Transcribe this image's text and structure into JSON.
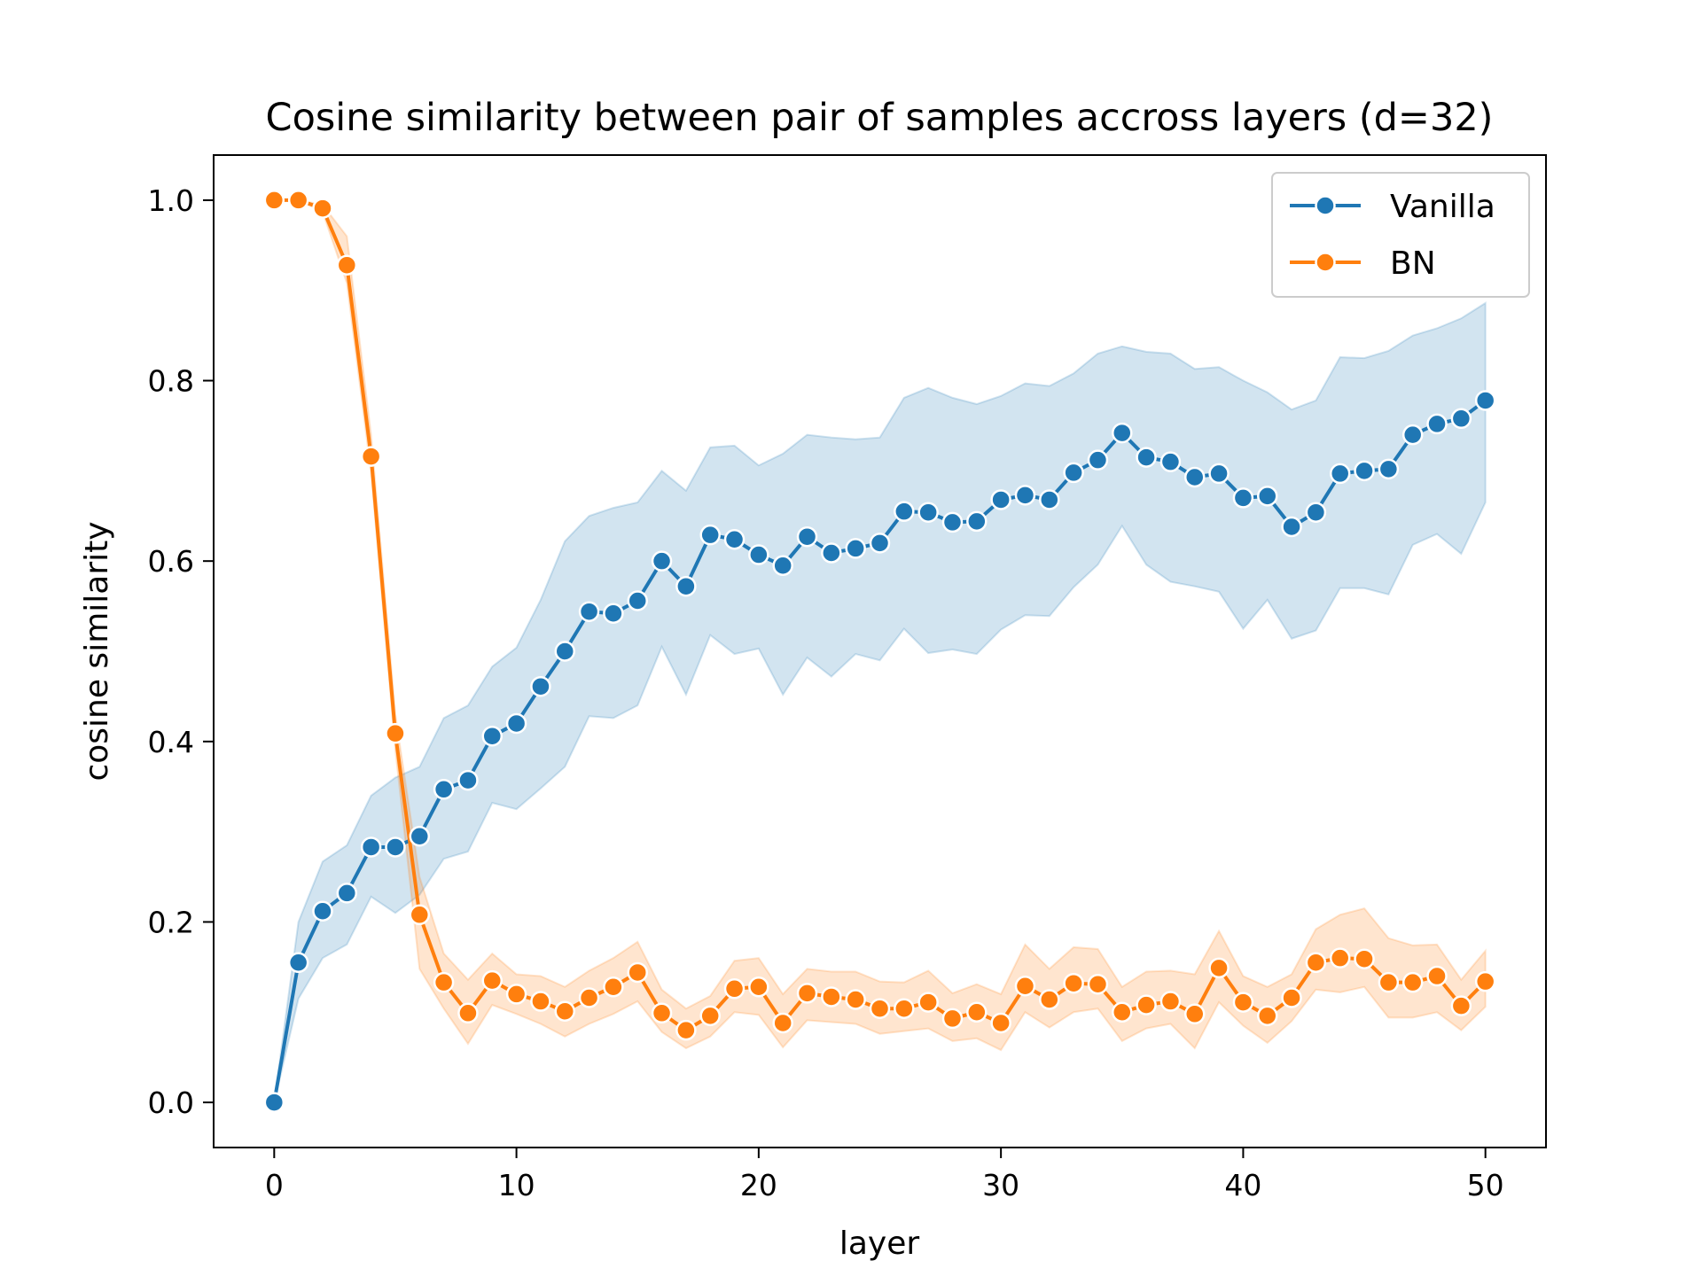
{
  "chart_data": {
    "type": "line",
    "title": "Cosine similarity between pair of samples accross layers (d=32)",
    "xlabel": "layer",
    "ylabel": "cosine similarity",
    "xlim": [
      -2.5,
      52.5
    ],
    "ylim": [
      -0.05,
      1.05
    ],
    "xticks": [
      0,
      10,
      20,
      30,
      40,
      50
    ],
    "yticks": [
      0.0,
      0.2,
      0.4,
      0.6,
      0.8,
      1.0
    ],
    "xtick_labels": [
      "0",
      "10",
      "20",
      "30",
      "40",
      "50"
    ],
    "ytick_labels": [
      "0.0",
      "0.2",
      "0.4",
      "0.6",
      "0.8",
      "1.0"
    ],
    "grid": false,
    "legend_position": "top-right",
    "x": [
      0,
      1,
      2,
      3,
      4,
      5,
      6,
      7,
      8,
      9,
      10,
      11,
      12,
      13,
      14,
      15,
      16,
      17,
      18,
      19,
      20,
      21,
      22,
      23,
      24,
      25,
      26,
      27,
      28,
      29,
      30,
      31,
      32,
      33,
      34,
      35,
      36,
      37,
      38,
      39,
      40,
      41,
      42,
      43,
      44,
      45,
      46,
      47,
      48,
      49,
      50
    ],
    "series": [
      {
        "name": "Vanilla",
        "color": "#1f77b4",
        "values": [
          0.0,
          0.155,
          0.212,
          0.232,
          0.283,
          0.283,
          0.295,
          0.347,
          0.357,
          0.406,
          0.42,
          0.461,
          0.5,
          0.544,
          0.542,
          0.556,
          0.6,
          0.572,
          0.629,
          0.624,
          0.607,
          0.595,
          0.627,
          0.609,
          0.614,
          0.62,
          0.655,
          0.654,
          0.643,
          0.644,
          0.668,
          0.673,
          0.668,
          0.698,
          0.712,
          0.742,
          0.715,
          0.71,
          0.693,
          0.697,
          0.67,
          0.672,
          0.638,
          0.654,
          0.697,
          0.7,
          0.702,
          0.74,
          0.752,
          0.758,
          0.778
        ],
        "ci_lower": [
          0.0,
          0.115,
          0.16,
          0.175,
          0.228,
          0.21,
          0.23,
          0.27,
          0.278,
          0.332,
          0.325,
          0.348,
          0.372,
          0.428,
          0.426,
          0.44,
          0.505,
          0.452,
          0.518,
          0.497,
          0.503,
          0.452,
          0.493,
          0.472,
          0.497,
          0.49,
          0.525,
          0.498,
          0.502,
          0.497,
          0.524,
          0.54,
          0.539,
          0.571,
          0.596,
          0.639,
          0.596,
          0.577,
          0.572,
          0.566,
          0.525,
          0.557,
          0.514,
          0.523,
          0.57,
          0.57,
          0.563,
          0.618,
          0.63,
          0.608,
          0.665
        ],
        "ci_upper": [
          0.0,
          0.2,
          0.267,
          0.285,
          0.34,
          0.36,
          0.372,
          0.426,
          0.44,
          0.483,
          0.504,
          0.557,
          0.622,
          0.65,
          0.659,
          0.665,
          0.7,
          0.678,
          0.726,
          0.728,
          0.706,
          0.719,
          0.74,
          0.737,
          0.735,
          0.737,
          0.781,
          0.792,
          0.781,
          0.774,
          0.783,
          0.797,
          0.794,
          0.808,
          0.83,
          0.838,
          0.832,
          0.83,
          0.813,
          0.815,
          0.8,
          0.787,
          0.768,
          0.778,
          0.826,
          0.825,
          0.833,
          0.85,
          0.858,
          0.869,
          0.886
        ]
      },
      {
        "name": "BN",
        "color": "#ff7f0e",
        "values": [
          1.0,
          1.0,
          0.991,
          0.928,
          0.716,
          0.409,
          0.208,
          0.133,
          0.099,
          0.135,
          0.12,
          0.112,
          0.101,
          0.116,
          0.128,
          0.144,
          0.099,
          0.08,
          0.096,
          0.126,
          0.128,
          0.088,
          0.121,
          0.117,
          0.114,
          0.104,
          0.104,
          0.111,
          0.093,
          0.1,
          0.088,
          0.129,
          0.114,
          0.132,
          0.131,
          0.1,
          0.108,
          0.112,
          0.098,
          0.149,
          0.111,
          0.096,
          0.116,
          0.155,
          0.16,
          0.159,
          0.133,
          0.133,
          0.14,
          0.107,
          0.134
        ],
        "ci_lower": [
          1.0,
          1.0,
          0.987,
          0.908,
          0.698,
          0.391,
          0.148,
          0.104,
          0.065,
          0.108,
          0.098,
          0.087,
          0.073,
          0.087,
          0.098,
          0.112,
          0.078,
          0.06,
          0.073,
          0.1,
          0.097,
          0.061,
          0.091,
          0.089,
          0.087,
          0.076,
          0.079,
          0.082,
          0.068,
          0.071,
          0.058,
          0.1,
          0.083,
          0.1,
          0.104,
          0.068,
          0.082,
          0.087,
          0.06,
          0.111,
          0.085,
          0.066,
          0.09,
          0.125,
          0.122,
          0.128,
          0.094,
          0.094,
          0.1,
          0.08,
          0.106
        ],
        "ci_upper": [
          1.0,
          1.0,
          0.995,
          0.96,
          0.74,
          0.43,
          0.25,
          0.165,
          0.136,
          0.165,
          0.142,
          0.14,
          0.128,
          0.146,
          0.16,
          0.178,
          0.125,
          0.104,
          0.118,
          0.157,
          0.16,
          0.12,
          0.148,
          0.145,
          0.145,
          0.134,
          0.133,
          0.146,
          0.121,
          0.131,
          0.12,
          0.175,
          0.148,
          0.172,
          0.17,
          0.128,
          0.145,
          0.146,
          0.142,
          0.19,
          0.14,
          0.128,
          0.142,
          0.192,
          0.208,
          0.215,
          0.182,
          0.174,
          0.175,
          0.136,
          0.168
        ]
      }
    ]
  }
}
